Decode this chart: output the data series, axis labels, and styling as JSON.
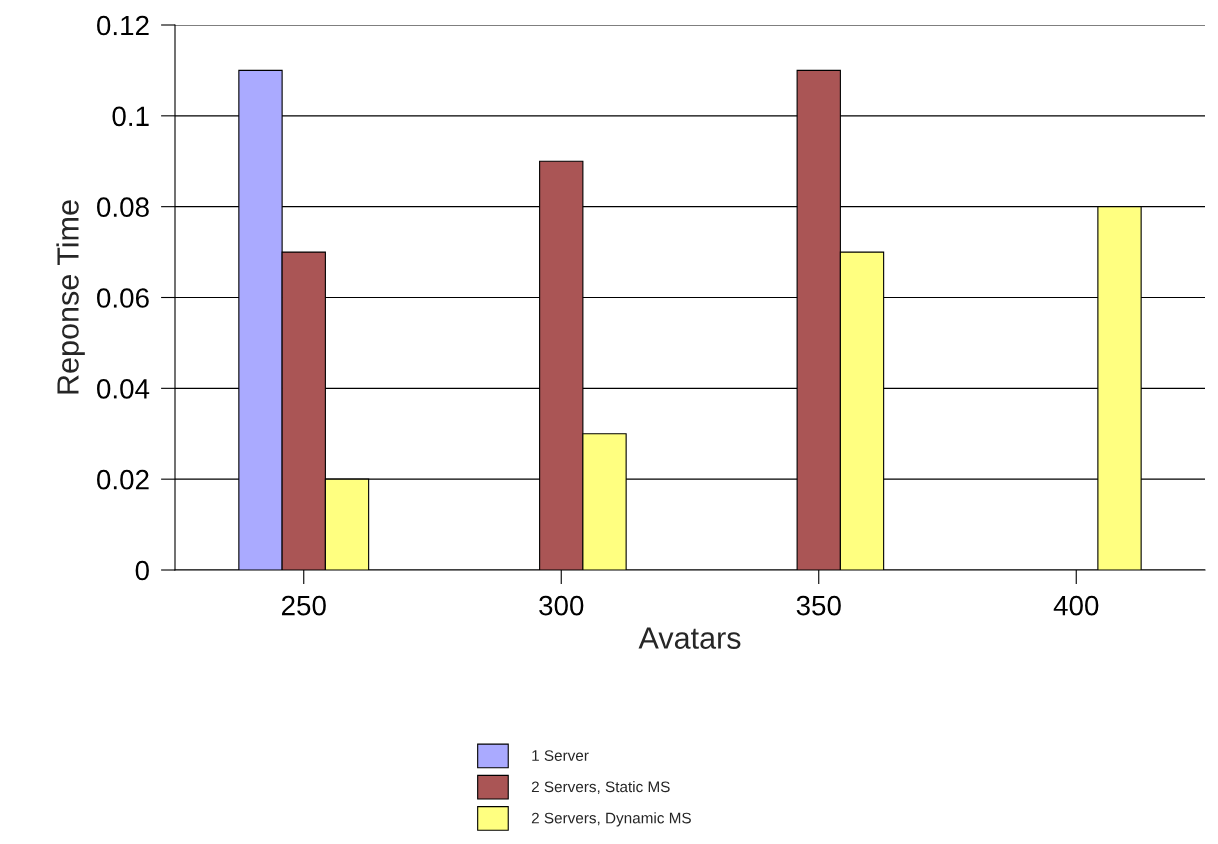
{
  "chart_data": {
    "type": "bar",
    "xlabel": "Avatars",
    "ylabel": "Reponse Time",
    "categories": [
      "250",
      "300",
      "350",
      "400"
    ],
    "series": [
      {
        "name": "1 Server",
        "color": "#aaaaff",
        "values": [
          0.11,
          null,
          null,
          null
        ]
      },
      {
        "name": "2 Servers, Static MS",
        "color": "#aa5555",
        "values": [
          0.07,
          0.09,
          0.11,
          null
        ]
      },
      {
        "name": "2 Servers, Dynamic MS",
        "color": "#ffff80",
        "values": [
          0.02,
          0.03,
          0.07,
          0.08
        ]
      }
    ],
    "ylim": [
      0,
      0.12
    ],
    "yticks": [
      0,
      {
        "value": 0.02,
        "label": "0.02"
      },
      {
        "value": 0.04,
        "label": "0.04"
      },
      {
        "value": 0.06,
        "label": "0.06"
      },
      {
        "value": 0.08,
        "label": "0.08"
      },
      {
        "value": 0.1,
        "label": "0.1"
      },
      {
        "value": 0.12,
        "label": "0.12"
      }
    ],
    "grid": "y",
    "legend": "bottom"
  }
}
